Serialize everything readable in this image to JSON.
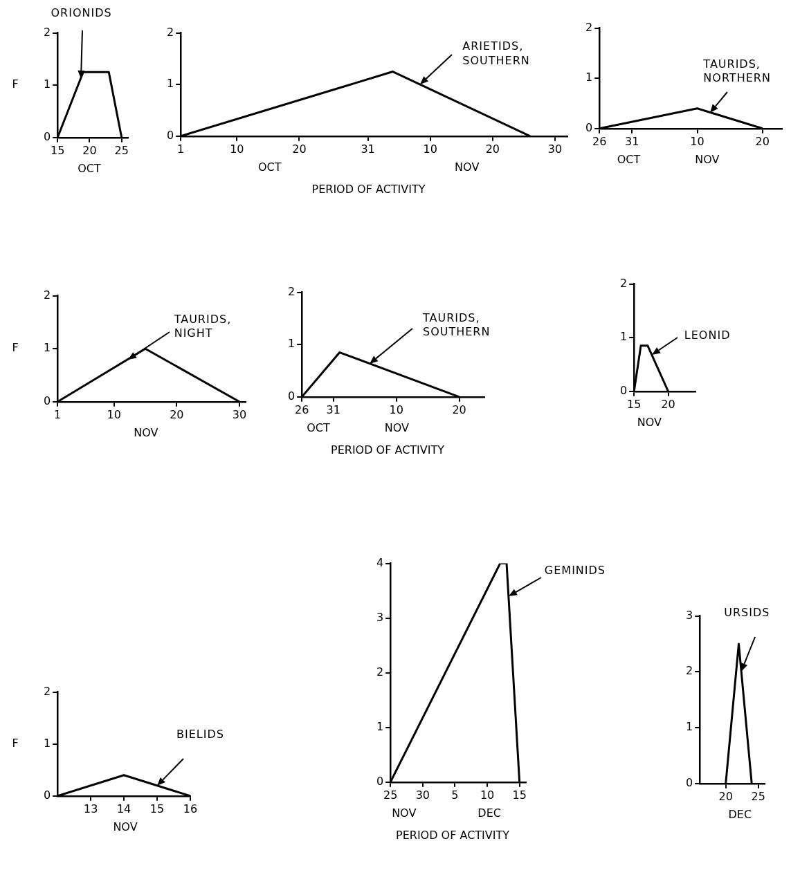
{
  "chart_data": [
    {
      "type": "line",
      "ylabel": "F",
      "x": [
        "--10-15",
        "--10-19",
        "--10-23",
        "--10-25"
      ],
      "series": [
        {
          "name": "ORIONIDS",
          "color": "#000000",
          "values": [
            0,
            1.25,
            1.25,
            0
          ]
        }
      ],
      "xlim": [
        "--10-15",
        "--10-26"
      ],
      "xticks": [
        {
          "value": "--10-15",
          "label": "15"
        },
        {
          "value": "--10-20",
          "label": "20"
        },
        {
          "value": "--10-25",
          "label": "25"
        }
      ],
      "ylim": [
        0,
        2
      ],
      "yticks": [
        0,
        1,
        2
      ],
      "annotations": [
        "OCT"
      ],
      "grid": false,
      "legend": false
    },
    {
      "type": "line",
      "xlabel": "PERIOD OF ACTIVITY",
      "x": [
        "--10-01",
        "--11-04",
        "--11-26"
      ],
      "series": [
        {
          "name": "ARIETIDS, SOUTHERN",
          "color": "#000000",
          "values": [
            0,
            1.25,
            0
          ]
        }
      ],
      "xlim": [
        "--10-01",
        "--12-02"
      ],
      "xticks": [
        {
          "value": "--10-01",
          "label": "1"
        },
        {
          "value": "--10-10",
          "label": "10"
        },
        {
          "value": "--10-20",
          "label": "20"
        },
        {
          "value": "--10-31",
          "label": "31"
        },
        {
          "value": "--11-10",
          "label": "10"
        },
        {
          "value": "--11-20",
          "label": "20"
        },
        {
          "value": "--11-30",
          "label": "30"
        }
      ],
      "ylim": [
        0,
        2
      ],
      "yticks": [
        0,
        1,
        2
      ],
      "annotations": [
        "OCT",
        "NOV"
      ],
      "grid": false,
      "legend": false
    },
    {
      "type": "line",
      "x": [
        "--10-26",
        "--11-10",
        "--11-20"
      ],
      "series": [
        {
          "name": "TAURIDS, NORTHERN",
          "color": "#000000",
          "values": [
            0,
            0.4,
            0
          ]
        }
      ],
      "xlim": [
        "--10-26",
        "--11-23"
      ],
      "xticks": [
        {
          "value": "--10-26",
          "label": "26"
        },
        {
          "value": "--10-31",
          "label": "31"
        },
        {
          "value": "--11-10",
          "label": "10"
        },
        {
          "value": "--11-20",
          "label": "20"
        }
      ],
      "ylim": [
        0,
        2
      ],
      "yticks": [
        0,
        1,
        2
      ],
      "annotations": [
        "OCT",
        "NOV"
      ],
      "grid": false,
      "legend": false
    },
    {
      "type": "line",
      "ylabel": "F",
      "x": [
        "--11-01",
        "--11-15",
        "--11-30"
      ],
      "series": [
        {
          "name": "TAURIDS, NIGHT",
          "color": "#000000",
          "values": [
            0,
            1,
            0
          ]
        }
      ],
      "xlim": [
        "--11-01",
        "--12-01"
      ],
      "xticks": [
        {
          "value": "--11-01",
          "label": "1"
        },
        {
          "value": "--11-10",
          "label": "10"
        },
        {
          "value": "--11-20",
          "label": "20"
        },
        {
          "value": "--11-30",
          "label": "30"
        }
      ],
      "ylim": [
        0,
        2
      ],
      "yticks": [
        0,
        1,
        2
      ],
      "annotations": [
        "NOV"
      ],
      "grid": false,
      "legend": false
    },
    {
      "type": "line",
      "xlabel": "PERIOD OF ACTIVITY",
      "x": [
        "--10-26",
        "--11-01",
        "--11-20"
      ],
      "series": [
        {
          "name": "TAURIDS, SOUTHERN",
          "color": "#000000",
          "values": [
            0,
            0.85,
            0
          ]
        }
      ],
      "xlim": [
        "--10-26",
        "--11-24"
      ],
      "xticks": [
        {
          "value": "--10-26",
          "label": "26"
        },
        {
          "value": "--10-31",
          "label": "31"
        },
        {
          "value": "--11-10",
          "label": "10"
        },
        {
          "value": "--11-20",
          "label": "20"
        }
      ],
      "ylim": [
        0,
        2
      ],
      "yticks": [
        0,
        1,
        2
      ],
      "annotations": [
        "OCT",
        "NOV"
      ],
      "grid": false,
      "legend": false
    },
    {
      "type": "line",
      "x": [
        "--11-15",
        "--11-16",
        "--11-17",
        "--11-20"
      ],
      "series": [
        {
          "name": "LEONID",
          "color": "#000000",
          "values": [
            0,
            0.85,
            0.85,
            0
          ]
        }
      ],
      "xlim": [
        "--11-15",
        "--11-24"
      ],
      "xticks": [
        {
          "value": "--11-15",
          "label": "15"
        },
        {
          "value": "--11-20",
          "label": "20"
        }
      ],
      "ylim": [
        0,
        2
      ],
      "yticks": [
        0,
        1,
        2
      ],
      "annotations": [
        "NOV"
      ],
      "grid": false,
      "legend": false
    },
    {
      "type": "line",
      "ylabel": "F",
      "x": [
        "--11-12",
        "--11-14",
        "--11-16"
      ],
      "series": [
        {
          "name": "BIELIDS",
          "color": "#000000",
          "values": [
            0,
            0.4,
            0
          ]
        }
      ],
      "xlim": [
        "--11-12",
        "--11-16"
      ],
      "xticks": [
        {
          "value": "--11-13",
          "label": "13"
        },
        {
          "value": "--11-14",
          "label": "14"
        },
        {
          "value": "--11-15",
          "label": "15"
        },
        {
          "value": "--11-16",
          "label": "16"
        }
      ],
      "ylim": [
        0,
        2
      ],
      "yticks": [
        0,
        1,
        2
      ],
      "annotations": [
        "NOV"
      ],
      "grid": false,
      "legend": false
    },
    {
      "type": "line",
      "xlabel": "PERIOD OF ACTIVITY",
      "x": [
        "--11-25",
        "--12-12",
        "--12-13",
        "--12-15"
      ],
      "series": [
        {
          "name": "GEMINIDS",
          "color": "#000000",
          "values": [
            0,
            4,
            4,
            0
          ]
        }
      ],
      "xlim": [
        "--11-25",
        "--12-16"
      ],
      "xticks": [
        {
          "value": "--11-25",
          "label": "25"
        },
        {
          "value": "--11-30",
          "label": "30"
        },
        {
          "value": "--12-05",
          "label": "5"
        },
        {
          "value": "--12-10",
          "label": "10"
        },
        {
          "value": "--12-15",
          "label": "15"
        }
      ],
      "ylim": [
        0,
        4
      ],
      "yticks": [
        0,
        1,
        2,
        3,
        4
      ],
      "annotations": [
        "NOV",
        "DEC"
      ],
      "grid": false,
      "legend": false
    },
    {
      "type": "line",
      "x": [
        "--12-20",
        "--12-22",
        "--12-24"
      ],
      "series": [
        {
          "name": "URSIDS",
          "color": "#000000",
          "values": [
            0,
            2.5,
            0
          ]
        }
      ],
      "xlim": [
        "--12-16",
        "--12-26"
      ],
      "xticks": [
        {
          "value": "--12-20",
          "label": "20"
        },
        {
          "value": "--12-25",
          "label": "25"
        }
      ],
      "ylim": [
        0,
        3
      ],
      "yticks": [
        0,
        1,
        2,
        3
      ],
      "annotations": [
        "DEC"
      ],
      "grid": false,
      "legend": false
    }
  ]
}
